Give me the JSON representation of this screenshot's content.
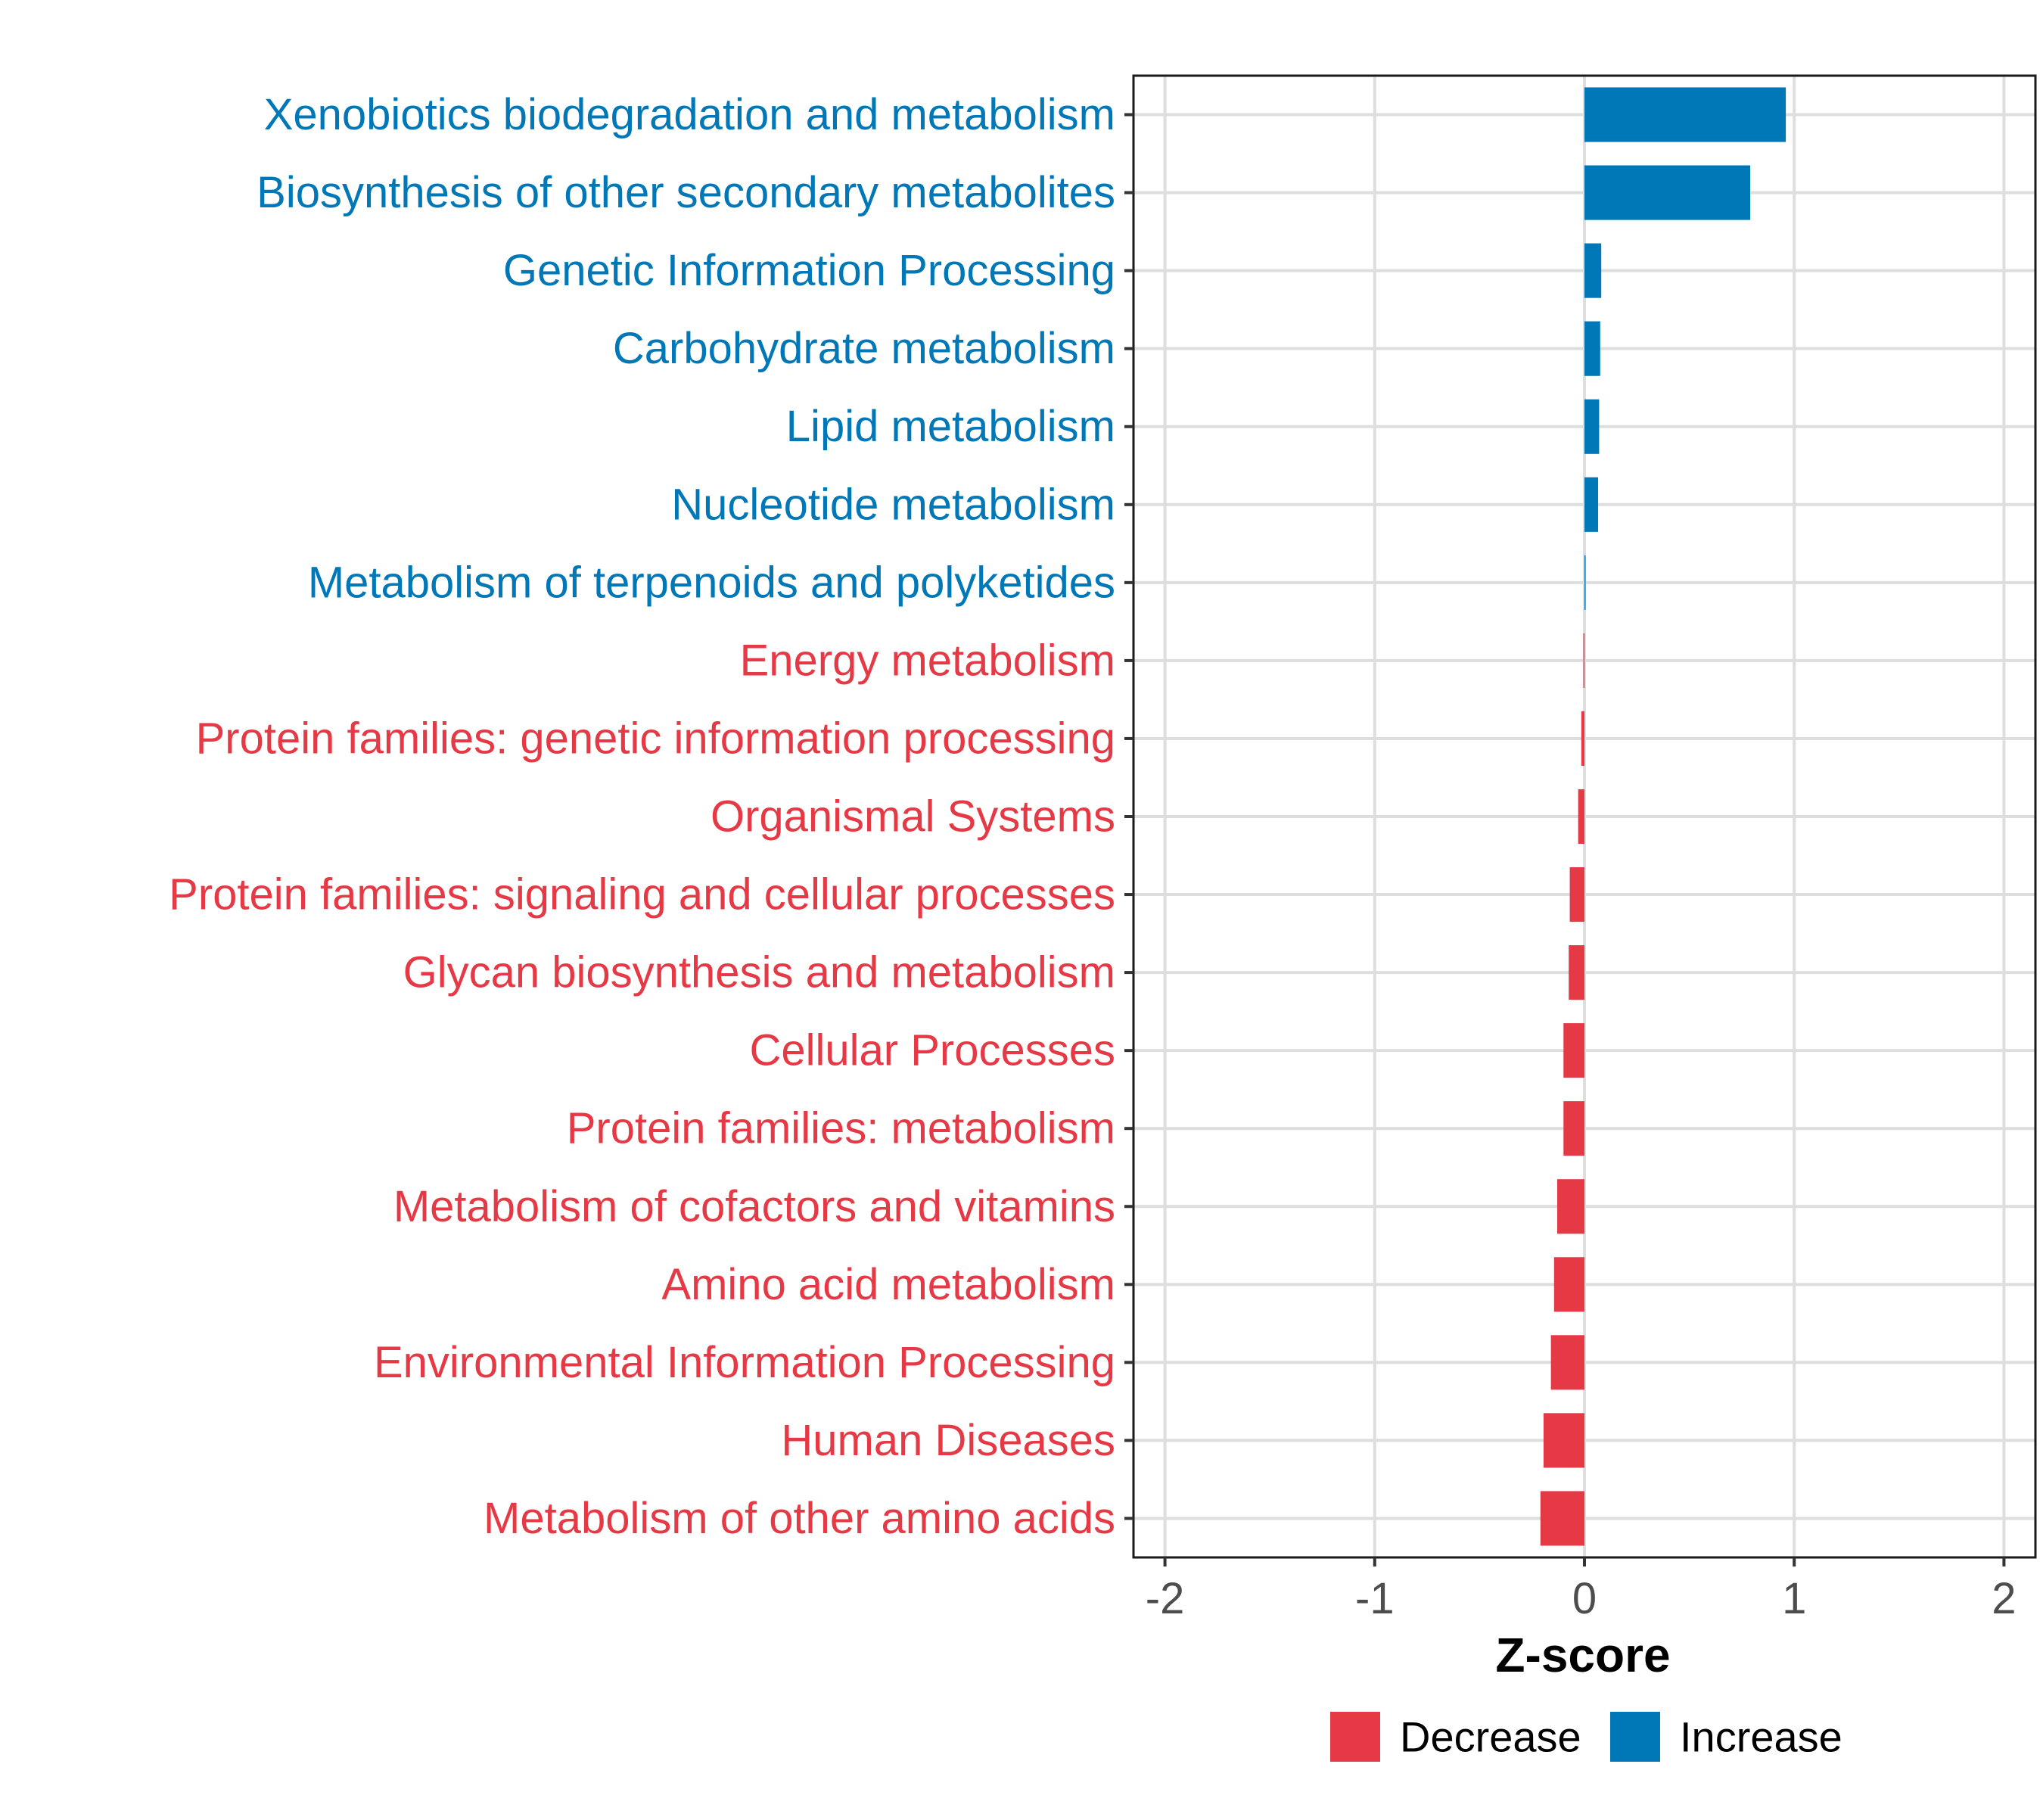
{
  "chart_data": {
    "type": "bar",
    "orientation": "horizontal",
    "title": "",
    "xlabel": "Z-score",
    "ylabel": "",
    "xlim": [
      -2.15,
      2.15
    ],
    "x_ticks": [
      -2,
      -1,
      0,
      1,
      2
    ],
    "x_tick_labels": [
      "-2",
      "-1",
      "0",
      "1",
      "2"
    ],
    "grid": true,
    "legend_position": "bottom",
    "legend": [
      {
        "name": "Decrease",
        "color": "#E63946"
      },
      {
        "name": "Increase",
        "color": "#0077B6"
      }
    ],
    "categories": [
      "Xenobiotics biodegradation and metabolism",
      "Biosynthesis of other secondary metabolites",
      "Genetic Information Processing",
      "Carbohydrate metabolism",
      "Lipid metabolism",
      "Nucleotide metabolism",
      "Metabolism of terpenoids and polyketides",
      "Energy metabolism",
      "Protein families: genetic information processing",
      "Organismal Systems",
      "Protein families: signaling and cellular processes",
      "Glycan biosynthesis and metabolism",
      "Cellular Processes",
      "Protein families: metabolism",
      "Metabolism of cofactors and vitamins",
      "Amino acid metabolism",
      "Environmental Information Processing",
      "Human Diseases",
      "Metabolism of other amino acids"
    ],
    "values": [
      0.96,
      0.79,
      0.08,
      0.075,
      0.07,
      0.065,
      0.005,
      -0.005,
      -0.015,
      -0.03,
      -0.07,
      -0.075,
      -0.1,
      -0.1,
      -0.13,
      -0.145,
      -0.16,
      -0.195,
      -0.21
    ],
    "series_group": [
      "Increase",
      "Increase",
      "Increase",
      "Increase",
      "Increase",
      "Increase",
      "Increase",
      "Decrease",
      "Decrease",
      "Decrease",
      "Decrease",
      "Decrease",
      "Decrease",
      "Decrease",
      "Decrease",
      "Decrease",
      "Decrease",
      "Decrease",
      "Decrease"
    ]
  }
}
